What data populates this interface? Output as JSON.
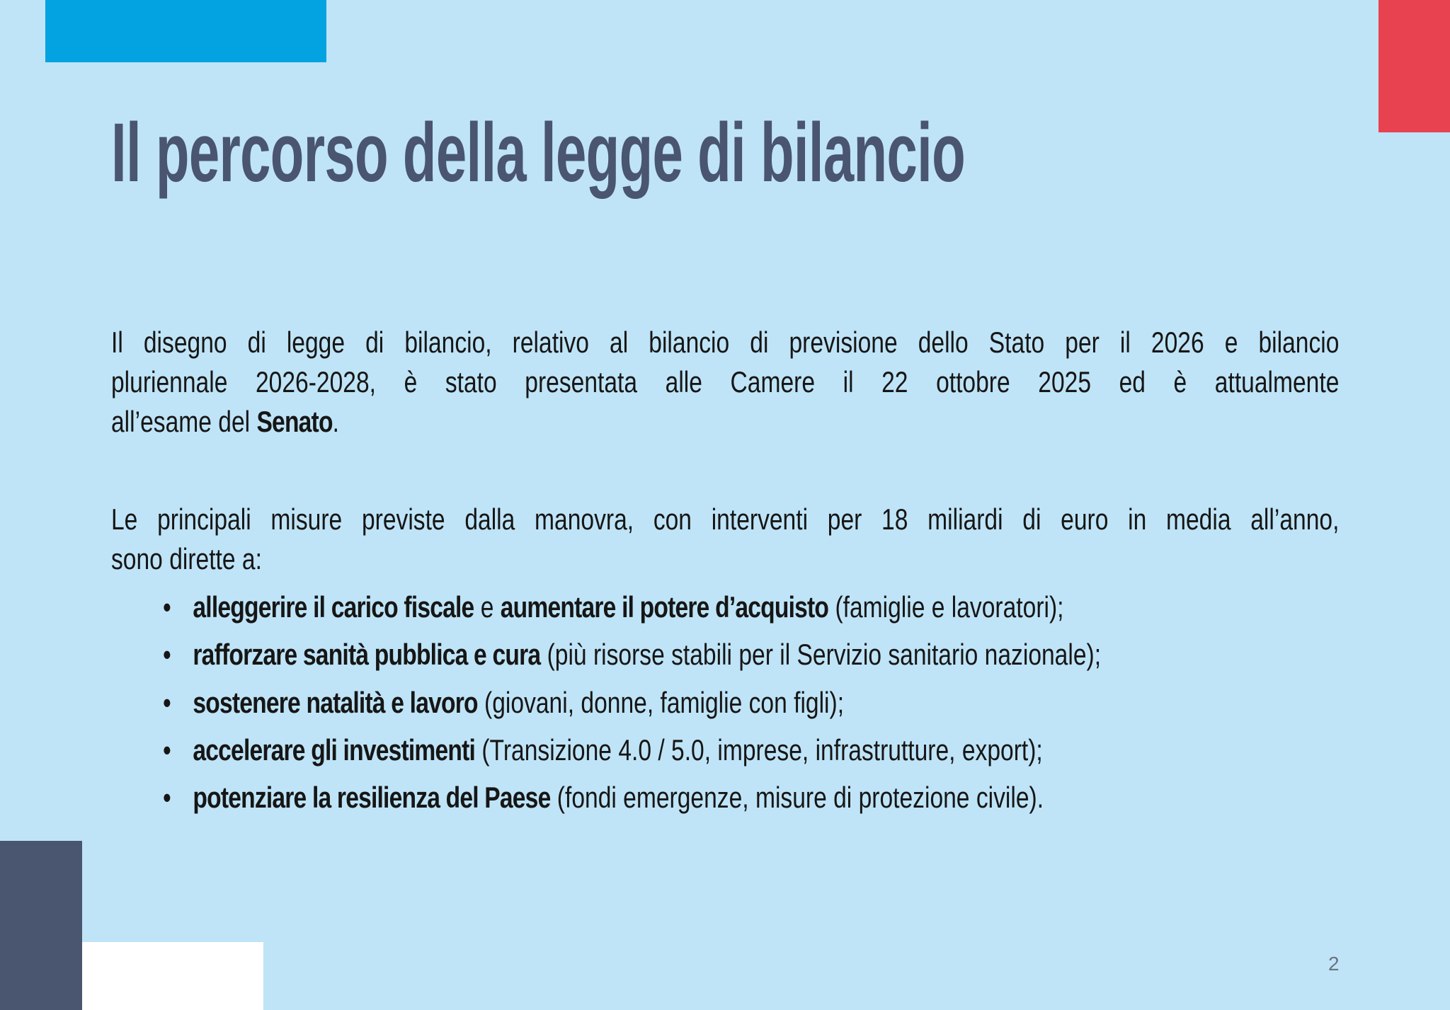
{
  "colors": {
    "background": "#bfe4f7",
    "accent_blue": "#02a3e0",
    "accent_red": "#e84250",
    "dark": "#4a5570"
  },
  "title": "Il percorso della legge di bilancio",
  "paragraph1": {
    "line1": "Il disegno di legge di bilancio, relativo al bilancio di previsione dello Stato per il 2026 e bilancio",
    "line2": "pluriennale 2026-2028, è stato presentata alle Camere il 22 ottobre 2025 ed è attualmente",
    "line3_pre": "all’esame del ",
    "line3_bold": "Senato",
    "line3_post": "."
  },
  "paragraph2": {
    "line1": "Le principali misure previste dalla manovra, con interventi per 18 miliardi di euro in media all’anno,",
    "line2": "sono dirette a:"
  },
  "bullets": [
    {
      "bold": "alleggerire il carico fiscale",
      "mid": " e ",
      "bold2": "aumentare il potere d’acquisto",
      "rest": " (famiglie e lavoratori);"
    },
    {
      "bold": "rafforzare sanità pubblica e cura",
      "rest": " (più risorse stabili per il Servizio sanitario nazionale);"
    },
    {
      "bold": "sostenere natalità e lavoro",
      "rest": " (giovani, donne, famiglie con figli);"
    },
    {
      "bold": "accelerare gli investimenti",
      "rest": " (Transizione 4.0 / 5.0, imprese, infrastrutture, export);"
    },
    {
      "bold": "potenziare la resilienza del Paese",
      "rest": " (fondi emergenze, misure di protezione civile)."
    }
  ],
  "bullet_symbol": "•",
  "page_number": "2"
}
